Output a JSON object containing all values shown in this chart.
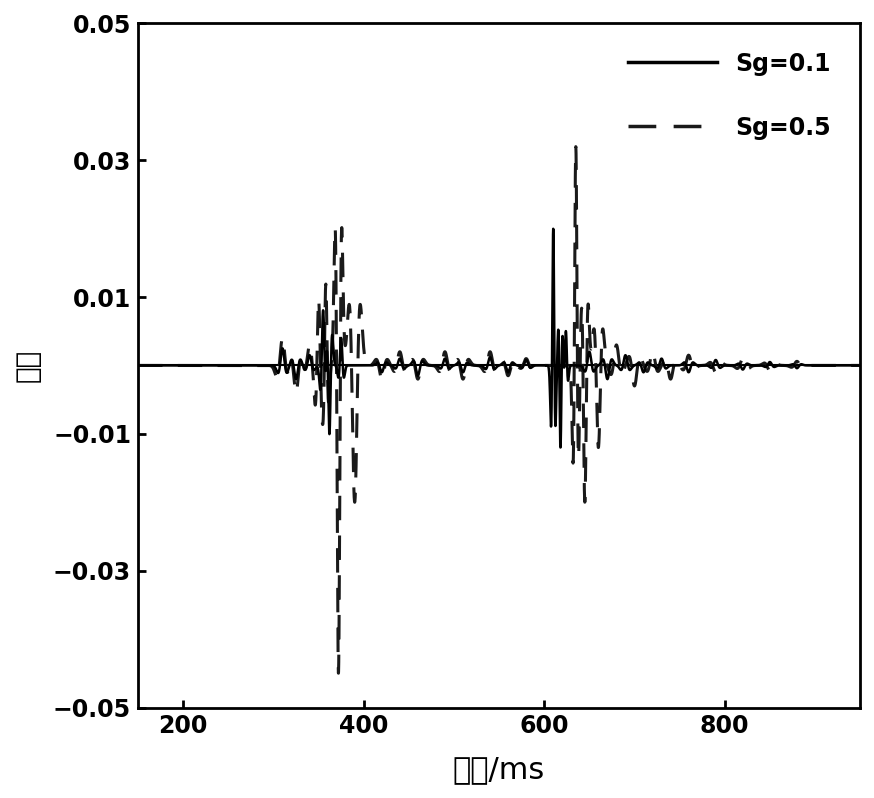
{
  "xlim": [
    150,
    950
  ],
  "ylim": [
    -0.05,
    0.05
  ],
  "xticks": [
    200,
    400,
    600,
    800
  ],
  "yticks": [
    -0.05,
    -0.03,
    -0.01,
    0.01,
    0.03,
    0.05
  ],
  "xlabel": "时间/ms",
  "ylabel": "振幅",
  "legend_labels": [
    "Sg=0.1",
    "Sg=0.5"
  ],
  "bg_color": "#ffffff",
  "line1_color": "#000000",
  "line2_color": "#1a1a1a",
  "title": ""
}
